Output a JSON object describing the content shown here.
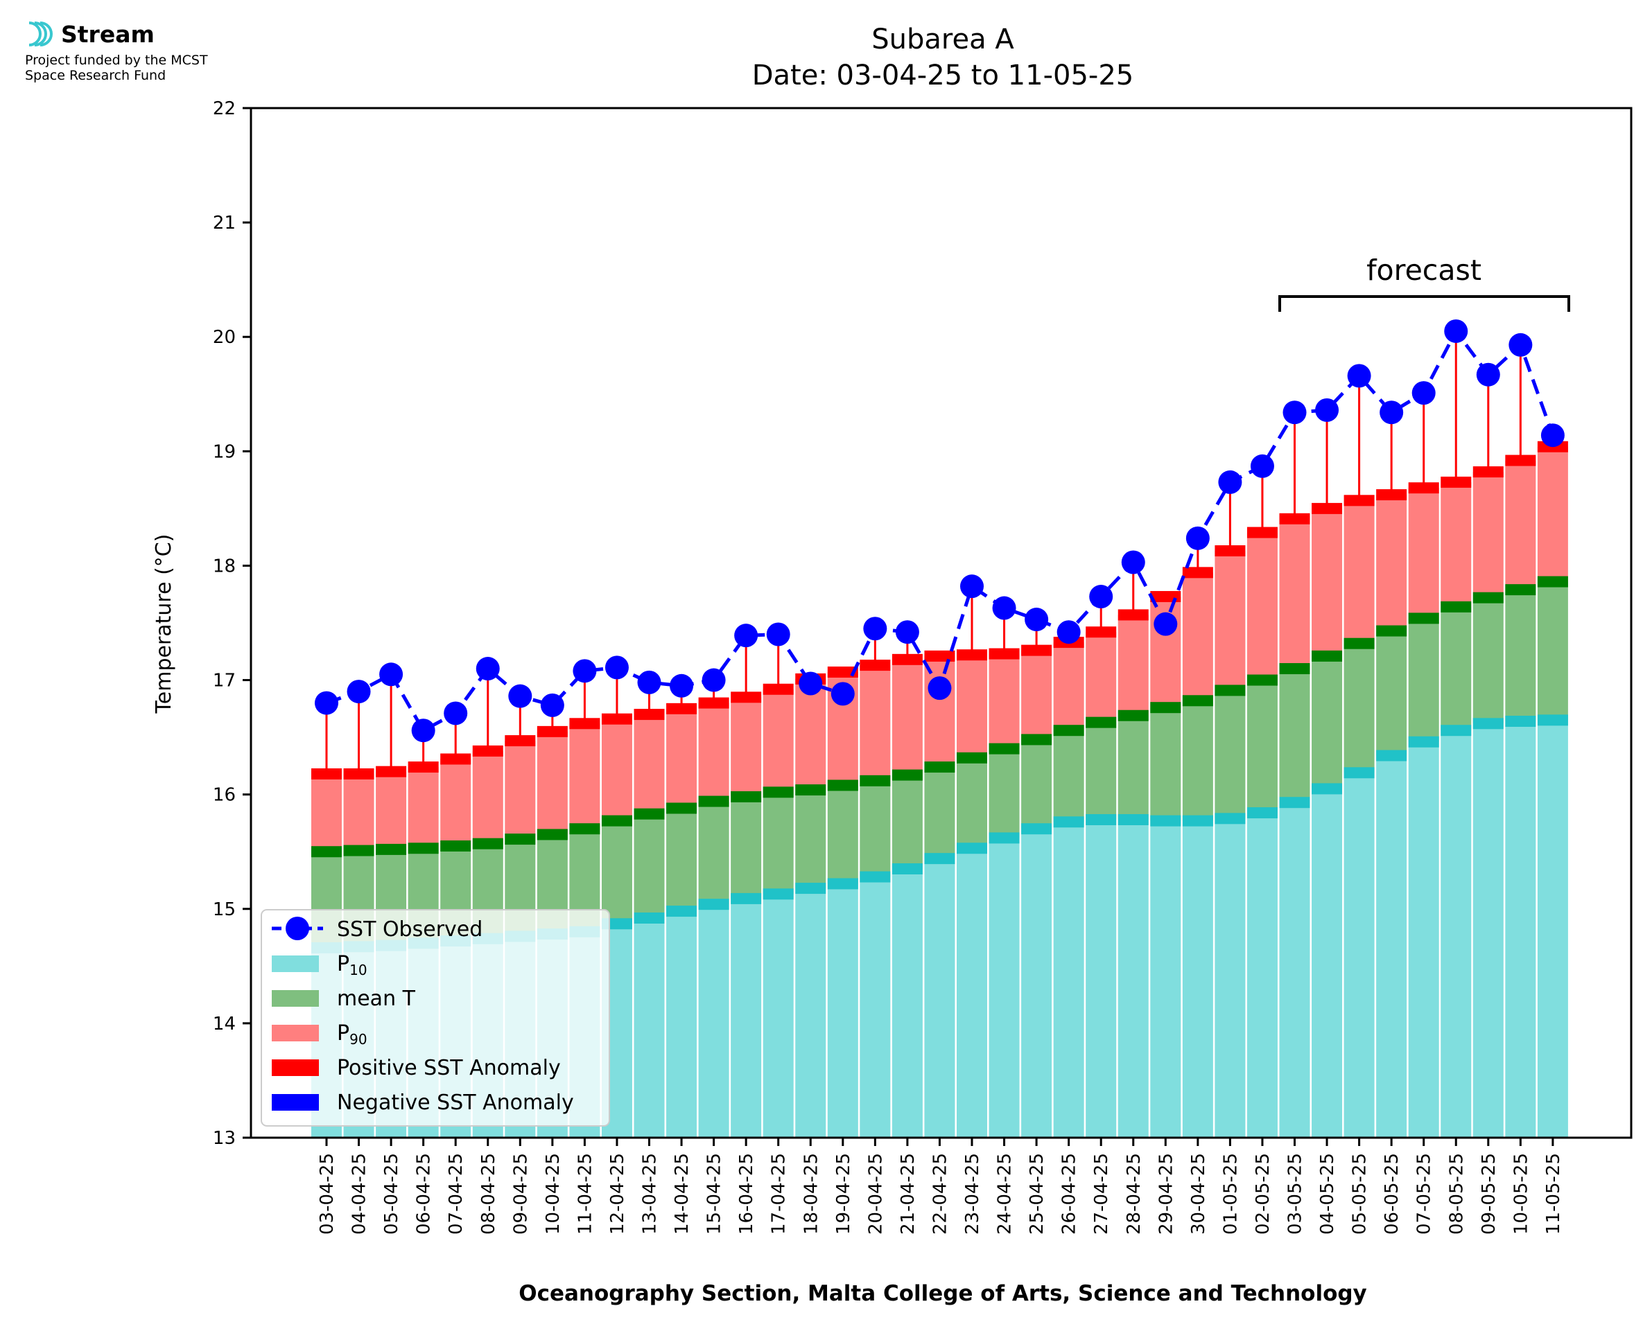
{
  "brand": {
    "name": "Stream",
    "note_line1": "Project funded by the MCST",
    "note_line2": "Space Research Fund",
    "accent_color": "#38c7cf"
  },
  "chart_data": {
    "type": "bar",
    "title_line1": "Subarea A",
    "title_line2": "Date: 03-04-25 to 11-05-25",
    "xlabel": "Oceanography Section, Malta College of Arts, Science and Technology",
    "ylabel": "Temperature (°C)",
    "ylim": [
      13,
      22
    ],
    "yticks": [
      "13",
      "14",
      "15",
      "16",
      "17",
      "18",
      "19",
      "20",
      "21",
      "22"
    ],
    "grid": false,
    "legend_position": "lower-left",
    "annotation": "forecast",
    "forecast_range": [
      "03-05-25",
      "11-05-25"
    ],
    "categories": [
      "03-04-25",
      "04-04-25",
      "05-04-25",
      "06-04-25",
      "07-04-25",
      "08-04-25",
      "09-04-25",
      "10-04-25",
      "11-04-25",
      "12-04-25",
      "13-04-25",
      "14-04-25",
      "15-04-25",
      "16-04-25",
      "17-04-25",
      "18-04-25",
      "19-04-25",
      "20-04-25",
      "21-04-25",
      "22-04-25",
      "23-04-25",
      "24-04-25",
      "25-04-25",
      "26-04-25",
      "27-04-25",
      "28-04-25",
      "29-04-25",
      "30-04-25",
      "01-05-25",
      "02-05-25",
      "03-05-25",
      "04-05-25",
      "05-05-25",
      "06-05-25",
      "07-05-25",
      "08-05-25",
      "09-05-25",
      "10-05-25",
      "11-05-25"
    ],
    "series": [
      {
        "name": "P10",
        "color": "#80dede",
        "values": [
          14.66,
          14.67,
          14.68,
          14.7,
          14.72,
          14.74,
          14.76,
          14.78,
          14.8,
          14.87,
          14.92,
          14.98,
          15.04,
          15.09,
          15.13,
          15.18,
          15.22,
          15.28,
          15.35,
          15.44,
          15.53,
          15.62,
          15.7,
          15.76,
          15.78,
          15.78,
          15.77,
          15.77,
          15.79,
          15.84,
          15.93,
          16.05,
          16.19,
          16.34,
          16.46,
          16.56,
          16.62,
          16.64,
          16.65
        ]
      },
      {
        "name": "mean T",
        "color": "#7fbf7f",
        "values": [
          15.5,
          15.51,
          15.52,
          15.53,
          15.55,
          15.57,
          15.61,
          15.65,
          15.7,
          15.77,
          15.83,
          15.88,
          15.94,
          15.98,
          16.02,
          16.04,
          16.08,
          16.12,
          16.17,
          16.24,
          16.32,
          16.4,
          16.48,
          16.56,
          16.63,
          16.69,
          16.76,
          16.82,
          16.91,
          17.0,
          17.1,
          17.21,
          17.32,
          17.43,
          17.54,
          17.64,
          17.72,
          17.79,
          17.86
        ]
      },
      {
        "name": "P90",
        "color": "#ff7f7f",
        "values": [
          16.18,
          16.18,
          16.2,
          16.24,
          16.31,
          16.38,
          16.47,
          16.55,
          16.62,
          16.66,
          16.7,
          16.75,
          16.8,
          16.85,
          16.92,
          17.01,
          17.07,
          17.13,
          17.18,
          17.21,
          17.22,
          17.23,
          17.26,
          17.33,
          17.42,
          17.57,
          17.73,
          17.94,
          18.13,
          18.29,
          18.41,
          18.5,
          18.57,
          18.62,
          18.68,
          18.73,
          18.82,
          18.92,
          19.04
        ]
      },
      {
        "name": "SST Observed",
        "color": "#0000ff",
        "values": [
          16.8,
          16.9,
          17.05,
          16.56,
          16.71,
          17.1,
          16.86,
          16.78,
          17.08,
          17.11,
          16.98,
          16.95,
          17.0,
          17.39,
          17.4,
          16.97,
          16.88,
          17.45,
          17.42,
          16.93,
          17.82,
          17.63,
          17.53,
          17.42,
          17.73,
          18.03,
          17.49,
          18.24,
          18.73,
          18.87,
          19.34,
          19.36,
          19.66,
          19.34,
          19.51,
          20.05,
          19.67,
          19.93,
          19.14
        ]
      }
    ],
    "legend": [
      {
        "label": "SST Observed",
        "type": "line-marker",
        "color": "#0000ff"
      },
      {
        "label_main": "P",
        "label_sub": "10",
        "type": "patch",
        "color": "#80dede"
      },
      {
        "label": "mean T",
        "type": "patch",
        "color": "#7fbf7f"
      },
      {
        "label_main": "P",
        "label_sub": "90",
        "type": "patch",
        "color": "#ff7f7f"
      },
      {
        "label": "Positive SST Anomaly",
        "type": "patch",
        "color": "#ff0000"
      },
      {
        "label": "Negative SST Anomaly",
        "type": "patch",
        "color": "#0000ff"
      }
    ],
    "colors": {
      "p10_cap": "#20c2c8",
      "mean_cap": "#007f00",
      "p90_cap": "#ff0000",
      "anomaly_positive": "#ff0000",
      "anomaly_negative": "#0000ff",
      "observed_line": "#0000ff"
    }
  }
}
